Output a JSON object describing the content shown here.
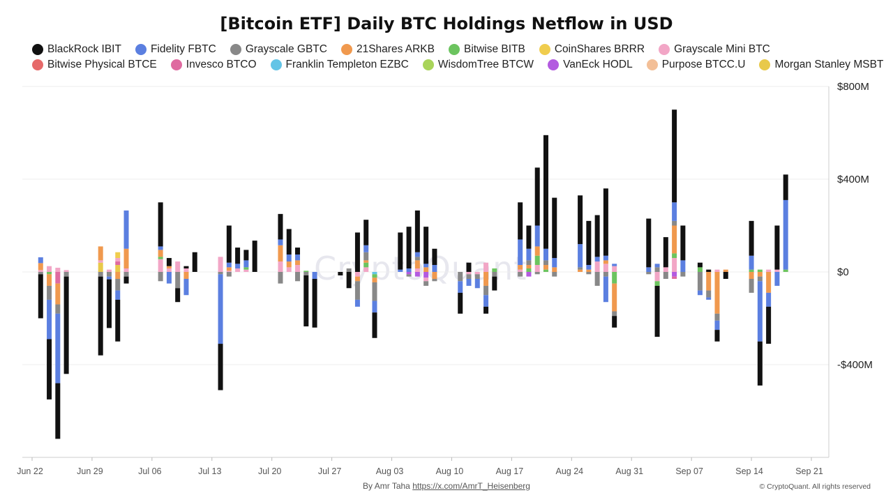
{
  "title": "[Bitcoin ETF] Daily BTC Holdings Netflow in USD",
  "legend": {
    "row1": [
      {
        "name": "BlackRock IBIT",
        "color": "#111111"
      },
      {
        "name": "Fidelity FBTC",
        "color": "#5b7fe0"
      },
      {
        "name": "Grayscale GBTC",
        "color": "#888888"
      },
      {
        "name": "21Shares ARKB",
        "color": "#f0994e"
      },
      {
        "name": "Bitwise BITB",
        "color": "#6cc45f"
      },
      {
        "name": "CoinShares BRRR",
        "color": "#f0cd4e"
      },
      {
        "name": "Grayscale Mini BTC",
        "color": "#f2a6c6"
      }
    ],
    "row2": [
      {
        "name": "Bitwise Physical BTCE",
        "color": "#e66a6a"
      },
      {
        "name": "Invesco BTCO",
        "color": "#df6aa0"
      },
      {
        "name": "Franklin Templeton EZBC",
        "color": "#64c4e6"
      },
      {
        "name": "WisdomTree BTCW",
        "color": "#a9d45a"
      },
      {
        "name": "VanEck HODL",
        "color": "#b35ae0"
      },
      {
        "name": "Purpose BTCC.U",
        "color": "#f3bf97"
      },
      {
        "name": "Morgan Stanley MSBT",
        "color": "#e8c94a"
      }
    ]
  },
  "watermark": "CryptoQuant",
  "footer": {
    "author_prefix": "By Amr Taha",
    "author_link": "https://x.com/AmrT_Heisenberg",
    "copyright": "© CryptoQuant. All rights reserved"
  },
  "chart_data": {
    "type": "bar",
    "stacked": true,
    "title": "[Bitcoin ETF] Daily BTC Holdings Netflow in USD",
    "ylim": [
      -800,
      800
    ],
    "y_unit": "USD millions",
    "y_ticks": [
      {
        "value": 800,
        "label": "$800M"
      },
      {
        "value": 400,
        "label": "$400M"
      },
      {
        "value": 0,
        "label": "$0"
      },
      {
        "value": -400,
        "label": "-$400M"
      }
    ],
    "x_ticks": [
      "Jun 22",
      "Jun 29",
      "Jul 06",
      "Jul 13",
      "Jul 20",
      "Jul 27",
      "Aug 03",
      "Aug 10",
      "Aug 17",
      "Aug 24",
      "Aug 31",
      "Sep 07",
      "Sep 14",
      "Sep 21"
    ],
    "x_domain": [
      "2025-06-22",
      "2025-09-21"
    ],
    "grid": true,
    "legend_position": "top",
    "series_order": [
      "BlackRock IBIT",
      "Fidelity FBTC",
      "Grayscale GBTC",
      "21Shares ARKB",
      "Bitwise BITB",
      "CoinShares BRRR",
      "Grayscale Mini BTC",
      "Bitwise Physical BTCE",
      "Invesco BTCO",
      "Franklin Templeton EZBC",
      "WisdomTree BTCW",
      "VanEck HODL",
      "Purpose BTCC.U",
      "Morgan Stanley MSBT"
    ],
    "days": [
      {
        "date": "2025-06-23",
        "values": {
          "BlackRock IBIT": -190,
          "Fidelity FBTC": 25,
          "Grayscale GBTC": -10,
          "21Shares ARKB": 30,
          "Grayscale Mini BTC": 8
        }
      },
      {
        "date": "2025-06-24",
        "values": {
          "BlackRock IBIT": -260,
          "Fidelity FBTC": -170,
          "Grayscale GBTC": -60,
          "21Shares ARKB": -50,
          "Bitwise BITB": -10,
          "Grayscale Mini BTC": 25
        }
      },
      {
        "date": "2025-06-25",
        "values": {
          "BlackRock IBIT": -240,
          "Fidelity FBTC": -300,
          "Grayscale GBTC": -40,
          "21Shares ARKB": -90,
          "Invesco BTCO": -50,
          "Grayscale Mini BTC": 18
        }
      },
      {
        "date": "2025-06-26",
        "values": {
          "BlackRock IBIT": -420,
          "Grayscale GBTC": -20,
          "Grayscale Mini BTC": 8
        }
      },
      {
        "date": "2025-06-30",
        "values": {
          "BlackRock IBIT": -340,
          "Grayscale GBTC": -20,
          "21Shares ARKB": 60,
          "Grayscale Mini BTC": 10,
          "Morgan Stanley MSBT": 40
        }
      },
      {
        "date": "2025-07-01",
        "values": {
          "BlackRock IBIT": -210,
          "Grayscale GBTC": -20,
          "Fidelity FBTC": -12,
          "Grayscale Mini BTC": 10
        }
      },
      {
        "date": "2025-07-02",
        "values": {
          "BlackRock IBIT": -180,
          "Fidelity FBTC": -40,
          "Grayscale GBTC": -50,
          "21Shares ARKB": -30,
          "Grayscale Mini BTC": 15,
          "CoinShares BRRR": 25,
          "Morgan Stanley MSBT": 30,
          "Invesco BTCO": 15
        }
      },
      {
        "date": "2025-07-03",
        "values": {
          "BlackRock IBIT": -30,
          "Fidelity FBTC": 165,
          "21Shares ARKB": 85,
          "Grayscale GBTC": -20,
          "Grayscale Mini BTC": 15
        }
      },
      {
        "date": "2025-07-07",
        "values": {
          "BlackRock IBIT": 190,
          "Fidelity FBTC": 15,
          "21Shares ARKB": 30,
          "Grayscale Mini BTC": 55,
          "Grayscale GBTC": -40,
          "Bitwise BITB": 10
        }
      },
      {
        "date": "2025-07-08",
        "values": {
          "BlackRock IBIT": 35,
          "Fidelity FBTC": -50,
          "21Shares ARKB": 10,
          "Grayscale Mini BTC": 15
        }
      },
      {
        "date": "2025-07-09",
        "values": {
          "BlackRock IBIT": -60,
          "Grayscale GBTC": -70,
          "Grayscale Mini BTC": 45
        }
      },
      {
        "date": "2025-07-10",
        "values": {
          "Fidelity FBTC": -70,
          "21Shares ARKB": -30,
          "Grayscale Mini BTC": 15,
          "BlackRock IBIT": 10
        }
      },
      {
        "date": "2025-07-11",
        "values": {
          "BlackRock IBIT": 85
        }
      },
      {
        "date": "2025-07-14",
        "values": {
          "BlackRock IBIT": -200,
          "Fidelity FBTC": -300,
          "Grayscale GBTC": -10,
          "Grayscale Mini BTC": 65
        }
      },
      {
        "date": "2025-07-15",
        "values": {
          "BlackRock IBIT": 160,
          "Fidelity FBTC": 20,
          "21Shares ARKB": 15,
          "Grayscale Mini BTC": 5,
          "Grayscale GBTC": -20
        }
      },
      {
        "date": "2025-07-16",
        "values": {
          "BlackRock IBIT": 70,
          "Fidelity FBTC": 20,
          "Grayscale Mini BTC": 15
        }
      },
      {
        "date": "2025-07-17",
        "values": {
          "BlackRock IBIT": 45,
          "Fidelity FBTC": 30,
          "Bitwise BITB": 10,
          "Grayscale Mini BTC": 10
        }
      },
      {
        "date": "2025-07-18",
        "values": {
          "BlackRock IBIT": 135
        }
      },
      {
        "date": "2025-07-21",
        "values": {
          "BlackRock IBIT": 110,
          "Fidelity FBTC": 25,
          "21Shares ARKB": 70,
          "Grayscale Mini BTC": 45,
          "Grayscale GBTC": -50
        }
      },
      {
        "date": "2025-07-22",
        "values": {
          "BlackRock IBIT": 110,
          "Fidelity FBTC": 30,
          "21Shares ARKB": 25,
          "Grayscale Mini BTC": 20
        }
      },
      {
        "date": "2025-07-23",
        "values": {
          "BlackRock IBIT": 30,
          "Fidelity FBTC": 25,
          "21Shares ARKB": 20,
          "Grayscale Mini BTC": 30,
          "Grayscale GBTC": -40
        }
      },
      {
        "date": "2025-07-24",
        "values": {
          "BlackRock IBIT": -220,
          "Grayscale GBTC": -15,
          "Bitwise BITB": 5
        }
      },
      {
        "date": "2025-07-25",
        "values": {
          "BlackRock IBIT": -210,
          "Fidelity FBTC": -30
        }
      },
      {
        "date": "2025-07-28",
        "values": {
          "BlackRock IBIT": -15
        }
      },
      {
        "date": "2025-07-29",
        "values": {
          "BlackRock IBIT": -70,
          "Grayscale GBTC": 15
        }
      },
      {
        "date": "2025-07-30",
        "values": {
          "BlackRock IBIT": 170,
          "Fidelity FBTC": -30,
          "Grayscale GBTC": -80,
          "21Shares ARKB": -20,
          "Grayscale Mini BTC": -20
        }
      },
      {
        "date": "2025-07-31",
        "values": {
          "BlackRock IBIT": 110,
          "Grayscale GBTC": 35,
          "Bitwise BITB": 20,
          "Grayscale Mini BTC": 20,
          "21Shares ARKB": 10,
          "Fidelity FBTC": 30
        }
      },
      {
        "date": "2025-08-01",
        "values": {
          "BlackRock IBIT": -110,
          "Fidelity FBTC": -50,
          "Grayscale GBTC": -80,
          "21Shares ARKB": -20,
          "Bitwise BITB": -15,
          "Franklin Templeton EZBC": -10
        }
      },
      {
        "date": "2025-08-04",
        "values": {
          "BlackRock IBIT": 160,
          "Fidelity FBTC": 10
        }
      },
      {
        "date": "2025-08-05",
        "values": {
          "BlackRock IBIT": 180,
          "Fidelity FBTC": 15,
          "Grayscale GBTC": -10,
          "VanEck HODL": -10
        }
      },
      {
        "date": "2025-08-06",
        "values": {
          "BlackRock IBIT": 180,
          "Fidelity FBTC": 20,
          "21Shares ARKB": 35,
          "Grayscale GBTC": 15,
          "VanEck HODL": -20,
          "Grayscale Mini BTC": 15
        }
      },
      {
        "date": "2025-08-07",
        "values": {
          "BlackRock IBIT": 160,
          "Fidelity FBTC": 15,
          "21Shares ARKB": 20,
          "Grayscale GBTC": -20,
          "VanEck HODL": -25,
          "Grayscale Mini BTC": -15
        }
      },
      {
        "date": "2025-08-08",
        "values": {
          "BlackRock IBIT": 70,
          "Fidelity FBTC": 30,
          "Grayscale GBTC": -10,
          "21Shares ARKB": -30
        }
      },
      {
        "date": "2025-08-11",
        "values": {
          "BlackRock IBIT": -90,
          "Fidelity FBTC": -50,
          "Grayscale GBTC": -40
        }
      },
      {
        "date": "2025-08-12",
        "values": {
          "BlackRock IBIT": 40,
          "Fidelity FBTC": -30,
          "Grayscale GBTC": -20,
          "Grayscale Mini BTC": -10
        }
      },
      {
        "date": "2025-08-13",
        "values": {
          "Fidelity FBTC": -40,
          "Grayscale GBTC": -20,
          "Grayscale Mini BTC": -10
        }
      },
      {
        "date": "2025-08-14",
        "values": {
          "Fidelity FBTC": -50,
          "Grayscale GBTC": -40,
          "21Shares ARKB": -60,
          "Grayscale Mini BTC": 40,
          "BlackRock IBIT": -30
        }
      },
      {
        "date": "2025-08-15",
        "values": {
          "BlackRock IBIT": -60,
          "Grayscale GBTC": -20,
          "Bitwise BITB": 15
        }
      },
      {
        "date": "2025-08-18",
        "values": {
          "BlackRock IBIT": 160,
          "Fidelity FBTC": 110,
          "21Shares ARKB": 20,
          "Grayscale Mini BTC": 10,
          "Grayscale GBTC": -20
        }
      },
      {
        "date": "2025-08-19",
        "values": {
          "BlackRock IBIT": 100,
          "Fidelity FBTC": 50,
          "Grayscale GBTC": 20,
          "21Shares ARKB": 15,
          "Bitwise BITB": 15,
          "VanEck HODL": -20
        }
      },
      {
        "date": "2025-08-20",
        "values": {
          "BlackRock IBIT": 250,
          "Fidelity FBTC": 90,
          "Bitwise BITB": 40,
          "21Shares ARKB": 40,
          "Grayscale Mini BTC": 30,
          "Grayscale GBTC": -10
        }
      },
      {
        "date": "2025-08-21",
        "values": {
          "BlackRock IBIT": 490,
          "Fidelity FBTC": 50,
          "21Shares ARKB": 20,
          "Grayscale GBTC": 20,
          "Bitwise BITB": 10
        }
      },
      {
        "date": "2025-08-22",
        "values": {
          "BlackRock IBIT": 260,
          "Fidelity FBTC": 40,
          "21Shares ARKB": 20,
          "Grayscale GBTC": -20
        }
      },
      {
        "date": "2025-08-25",
        "values": {
          "BlackRock IBIT": 210,
          "Fidelity FBTC": 100,
          "21Shares ARKB": 10,
          "Grayscale GBTC": 10
        }
      },
      {
        "date": "2025-08-26",
        "values": {
          "BlackRock IBIT": 190,
          "Fidelity FBTC": 20,
          "21Shares ARKB": 10,
          "Grayscale GBTC": -10
        }
      },
      {
        "date": "2025-08-27",
        "values": {
          "BlackRock IBIT": 180,
          "Fidelity FBTC": 20,
          "Grayscale Mini BTC": 45,
          "Grayscale GBTC": -60
        }
      },
      {
        "date": "2025-08-28",
        "values": {
          "BlackRock IBIT": 290,
          "Fidelity FBTC": 20,
          "Grayscale Mini BTC": 35,
          "21Shares ARKB": 15,
          "Grayscale GBTC": -20,
          "Fidelity FBTC_neg": -110
        }
      },
      {
        "date": "2025-08-29",
        "values": {
          "BlackRock IBIT": -50,
          "21Shares ARKB": -120,
          "Bitwise BITB": -50,
          "Grayscale GBTC": -20,
          "Grayscale Mini BTC": 25,
          "Fidelity FBTC": 10
        }
      },
      {
        "date": "2025-09-02",
        "values": {
          "BlackRock IBIT": 210,
          "Fidelity FBTC": 20,
          "Grayscale GBTC": -10
        }
      },
      {
        "date": "2025-09-03",
        "values": {
          "BlackRock IBIT": -220,
          "Grayscale GBTC": 20,
          "Fidelity FBTC": 15,
          "Bitwise BITB": -20,
          "Grayscale Mini BTC": -40
        }
      },
      {
        "date": "2025-09-04",
        "values": {
          "BlackRock IBIT": 130,
          "Grayscale Mini BTC": 20,
          "Grayscale GBTC": -30
        }
      },
      {
        "date": "2025-09-05",
        "values": {
          "BlackRock IBIT": 400,
          "Fidelity FBTC": 80,
          "21Shares ARKB": 120,
          "Grayscale GBTC": 20,
          "Bitwise BITB": 20,
          "Grayscale Mini BTC": 60,
          "VanEck HODL": -20,
          "Invesco BTCO": -10
        }
      },
      {
        "date": "2025-09-06",
        "values": {
          "BlackRock IBIT": 150,
          "Fidelity FBTC": 50,
          "Grayscale GBTC": -20
        }
      },
      {
        "date": "2025-09-08",
        "values": {
          "BlackRock IBIT": 20,
          "Grayscale GBTC": -80,
          "Fidelity FBTC": -20,
          "Bitwise BITB": 20
        }
      },
      {
        "date": "2025-09-09",
        "values": {
          "BlackRock IBIT": 10,
          "21Shares ARKB": -80,
          "Grayscale GBTC": -30,
          "Fidelity FBTC": -10
        }
      },
      {
        "date": "2025-09-10",
        "values": {
          "BlackRock IBIT": -50,
          "Fidelity FBTC": -40,
          "21Shares ARKB": -180,
          "Grayscale GBTC": -30,
          "Grayscale Mini BTC": 10
        }
      },
      {
        "date": "2025-09-11",
        "values": {
          "BlackRock IBIT": -30,
          "21Shares ARKB": 10
        }
      },
      {
        "date": "2025-09-14",
        "values": {
          "BlackRock IBIT": 150,
          "Fidelity FBTC": 60,
          "Grayscale GBTC": -60,
          "21Shares ARKB": -30,
          "Bitwise BITB": 10
        }
      },
      {
        "date": "2025-09-15",
        "values": {
          "BlackRock IBIT": -190,
          "Fidelity FBTC": -260,
          "21Shares ARKB": -20,
          "Grayscale GBTC": -20,
          "Bitwise BITB": 10
        }
      },
      {
        "date": "2025-09-16",
        "values": {
          "BlackRock IBIT": -160,
          "Fidelity FBTC": -60,
          "21Shares ARKB": -90,
          "Grayscale Mini BTC": 10
        }
      },
      {
        "date": "2025-09-17",
        "values": {
          "BlackRock IBIT": 190,
          "Fidelity FBTC": -60,
          "Grayscale Mini BTC": 10
        }
      },
      {
        "date": "2025-09-18",
        "values": {
          "BlackRock IBIT": 110,
          "Fidelity FBTC": 300,
          "Bitwise BITB": 10
        }
      }
    ]
  }
}
